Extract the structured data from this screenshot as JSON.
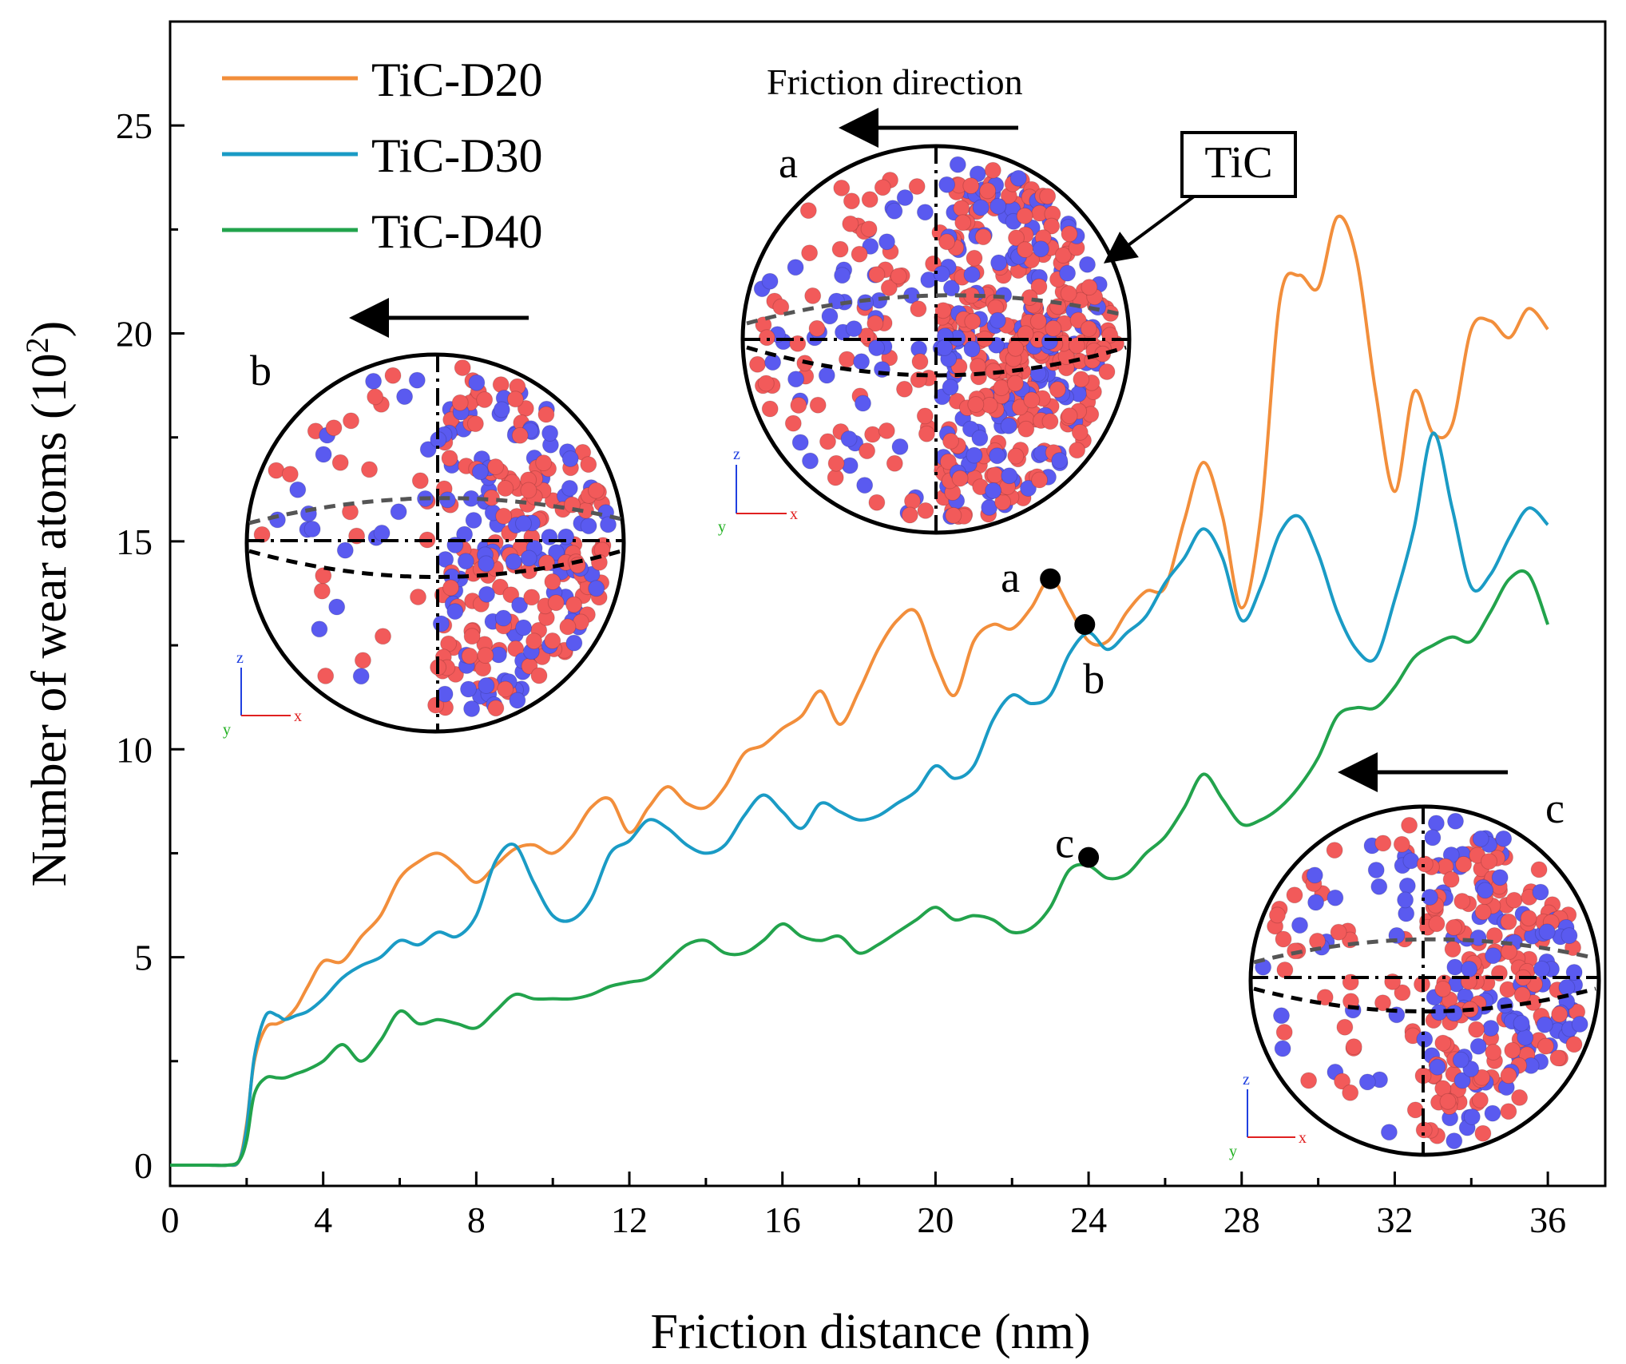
{
  "chart_data": {
    "type": "line",
    "title": "",
    "xlabel": "Friction distance (nm)",
    "ylabel_main": "Number of wear atoms (10",
    "ylabel_sup": "2",
    "ylabel_close": ")",
    "xlim": [
      0,
      37.5
    ],
    "ylim": [
      -0.5,
      27.5
    ],
    "xticks": [
      0,
      4,
      8,
      12,
      16,
      20,
      24,
      28,
      32,
      36
    ],
    "yticks": [
      0,
      5,
      10,
      15,
      20,
      25
    ],
    "x": [
      0,
      0.5,
      1.0,
      1.5,
      1.8,
      2.0,
      2.2,
      2.5,
      2.8,
      3.0,
      3.3,
      3.6,
      4.0,
      4.5,
      5.0,
      5.5,
      6.0,
      6.5,
      7.0,
      7.5,
      8.0,
      8.5,
      9.0,
      9.5,
      10.0,
      10.5,
      11.0,
      11.5,
      12.0,
      12.5,
      13.0,
      13.5,
      14.0,
      14.5,
      15.0,
      15.5,
      16.0,
      16.5,
      17.0,
      17.5,
      18.0,
      18.5,
      19.0,
      19.5,
      20.0,
      20.5,
      21.0,
      21.5,
      22.0,
      22.5,
      23.0,
      23.5,
      24.0,
      24.5,
      25.0,
      25.5,
      26.0,
      26.5,
      27.0,
      27.5,
      28.0,
      28.5,
      29.0,
      29.5,
      30.0,
      30.5,
      31.0,
      31.5,
      32.0,
      32.5,
      33.0,
      33.5,
      34.0,
      34.5,
      35.0,
      35.5,
      36.0
    ],
    "series": [
      {
        "name": "TiC-D20",
        "color": "#F28E3B",
        "values": [
          0,
          0,
          0,
          0,
          0.1,
          1.0,
          2.5,
          3.3,
          3.4,
          3.5,
          3.8,
          4.3,
          4.9,
          4.9,
          5.5,
          6.0,
          6.9,
          7.3,
          7.5,
          7.2,
          6.8,
          7.2,
          7.6,
          7.7,
          7.5,
          7.9,
          8.6,
          8.8,
          8.0,
          8.6,
          9.1,
          8.7,
          8.6,
          9.1,
          9.9,
          10.1,
          10.5,
          10.8,
          11.4,
          10.6,
          11.4,
          12.4,
          13.1,
          13.3,
          12.1,
          11.3,
          12.6,
          13.0,
          12.9,
          13.4,
          14.1,
          13.4,
          12.6,
          12.6,
          13.3,
          13.8,
          13.9,
          15.5,
          16.9,
          15.6,
          13.4,
          15.6,
          20.8,
          21.4,
          21.1,
          22.8,
          21.8,
          18.6,
          16.2,
          18.6,
          17.6,
          17.8,
          20.1,
          20.3,
          19.9,
          20.6,
          20.1
        ]
      },
      {
        "name": "TiC-D30",
        "color": "#1A9BC5",
        "values": [
          0,
          0,
          0,
          0,
          0.1,
          0.9,
          2.6,
          3.6,
          3.6,
          3.5,
          3.6,
          3.7,
          4.0,
          4.5,
          4.8,
          5.0,
          5.4,
          5.3,
          5.6,
          5.5,
          6.0,
          7.3,
          7.7,
          6.8,
          6.0,
          5.9,
          6.4,
          7.5,
          7.8,
          8.3,
          8.1,
          7.7,
          7.5,
          7.7,
          8.4,
          8.9,
          8.5,
          8.1,
          8.7,
          8.5,
          8.3,
          8.4,
          8.7,
          9.0,
          9.6,
          9.3,
          9.6,
          10.7,
          11.3,
          11.1,
          11.3,
          12.3,
          12.8,
          12.4,
          12.8,
          13.2,
          14.0,
          14.6,
          15.3,
          14.6,
          13.1,
          13.9,
          15.2,
          15.6,
          14.7,
          13.3,
          12.4,
          12.2,
          13.6,
          15.3,
          17.6,
          15.8,
          13.9,
          14.2,
          15.1,
          15.8,
          15.4
        ]
      },
      {
        "name": "TiC-D40",
        "color": "#22A34C",
        "values": [
          0,
          0,
          0,
          0,
          0.1,
          0.6,
          1.7,
          2.1,
          2.1,
          2.1,
          2.2,
          2.3,
          2.5,
          2.9,
          2.5,
          3.0,
          3.7,
          3.4,
          3.5,
          3.4,
          3.3,
          3.7,
          4.1,
          4.0,
          4.0,
          4.0,
          4.1,
          4.3,
          4.4,
          4.5,
          4.9,
          5.3,
          5.4,
          5.1,
          5.1,
          5.4,
          5.8,
          5.5,
          5.4,
          5.5,
          5.1,
          5.3,
          5.6,
          5.9,
          6.2,
          5.9,
          6.0,
          5.9,
          5.6,
          5.7,
          6.2,
          7.1,
          7.2,
          6.9,
          7.0,
          7.5,
          7.9,
          8.6,
          9.4,
          8.8,
          8.2,
          8.3,
          8.6,
          9.1,
          9.8,
          10.8,
          11.0,
          11.0,
          11.5,
          12.2,
          12.5,
          12.7,
          12.6,
          13.3,
          14.1,
          14.2,
          13.0
        ]
      }
    ],
    "markers": [
      {
        "label": "a",
        "x": 23.0,
        "y": 14.1
      },
      {
        "label": "b",
        "x": 23.9,
        "y": 13.0
      },
      {
        "label": "c",
        "x": 24.0,
        "y": 7.4
      }
    ],
    "legend": {
      "position": "top-left"
    }
  },
  "annotations": {
    "friction_direction": "Friction direction",
    "tic_box": "TiC",
    "inset_a_label": "a",
    "inset_b_label": "b",
    "inset_c_label": "c",
    "axis_z": "z",
    "axis_y": "y",
    "axis_x": "x"
  },
  "colors": {
    "ti_atom": "#F25A5A",
    "c_atom": "#5A5AF0",
    "axis_x": "#E02020",
    "axis_y": "#20B020",
    "axis_z": "#2040E0"
  }
}
